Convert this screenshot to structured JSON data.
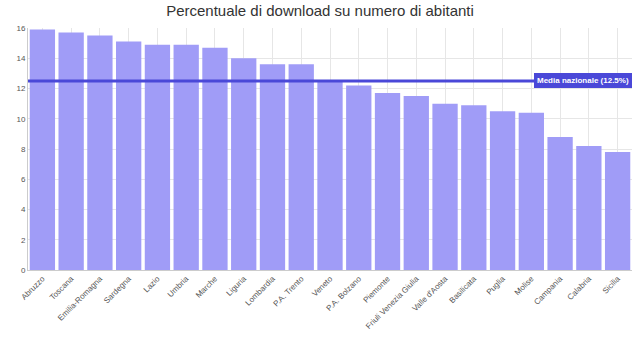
{
  "chart_data": {
    "type": "bar",
    "title": "Percentuale di download su numero di abitanti",
    "categories": [
      "Abruzzo",
      "Toscana",
      "Emilia-Romagna",
      "Sardegna",
      "Lazio",
      "Umbria",
      "Marche",
      "Liguria",
      "Lombardia",
      "P.A. Trento",
      "Veneto",
      "P.A. Bolzano",
      "Piemonte",
      "Friuli Venezia Giulia",
      "Valle d'Aosta",
      "Basilicata",
      "Puglia",
      "Molise",
      "Campania",
      "Calabria",
      "Sicilia"
    ],
    "values": [
      15.9,
      15.7,
      15.5,
      15.1,
      14.9,
      14.9,
      14.7,
      14.0,
      13.6,
      13.6,
      12.5,
      12.2,
      11.7,
      11.5,
      11.0,
      10.9,
      10.5,
      10.4,
      8.8,
      8.2,
      7.8
    ],
    "color": "#a09cf7",
    "ylim": [
      0,
      16
    ],
    "yticks": [
      0,
      2,
      4,
      6,
      8,
      10,
      12,
      14,
      16
    ],
    "grid": true,
    "annotations": [
      {
        "text": "Media nazionale (12.5%)",
        "value": 12.5,
        "color": "#4a48d8"
      }
    ]
  }
}
